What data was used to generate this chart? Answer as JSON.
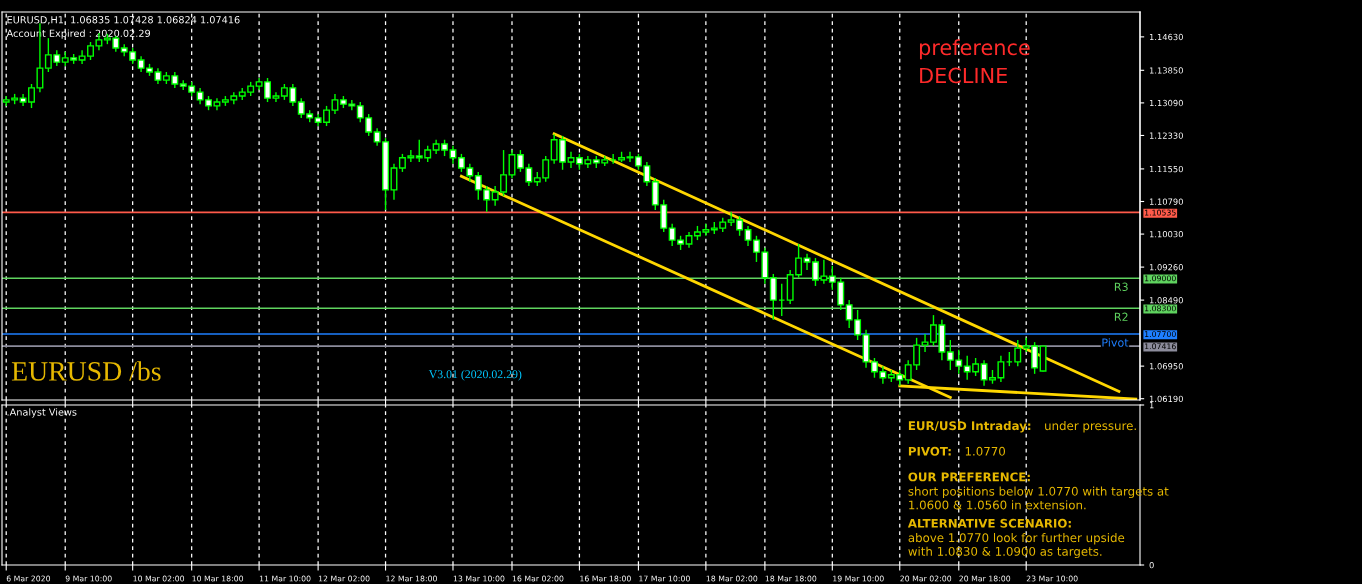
{
  "chart_data": [
    {
      "type": "candlestick",
      "title": "EURUSD,H1  1.06835 1.07428 1.06824 1.07416",
      "color": "#00ff00",
      "grid": "x",
      "annotations": [
        "Account Expired : 2020.02.29",
        "preference\nDECLINE",
        "EURUSD /bs",
        "V3.01 (2020.02.29)"
      ],
      "categories": [
        null,
        null,
        null,
        null,
        null,
        null,
        null,
        null,
        null,
        null,
        null,
        null,
        null,
        null,
        null,
        null,
        null,
        null,
        null,
        null,
        null,
        null,
        null,
        null,
        null,
        null,
        null,
        null,
        null,
        null,
        null,
        null,
        null,
        null,
        null,
        null,
        null,
        null,
        null,
        null,
        null,
        null,
        null,
        null,
        null,
        null,
        null,
        null,
        null,
        null,
        null,
        null,
        null,
        null,
        null,
        null,
        null,
        null,
        null,
        null,
        null,
        null,
        null,
        null,
        null,
        null,
        null,
        null,
        null,
        null,
        null,
        null,
        null,
        null,
        null,
        null,
        null,
        null,
        null,
        null,
        null,
        null,
        null,
        null,
        null,
        null,
        null,
        null,
        null,
        null,
        null,
        null,
        null,
        null,
        null,
        null,
        null,
        null,
        null,
        null,
        null,
        null,
        null,
        null,
        null,
        null,
        null,
        null,
        null,
        null,
        null,
        null,
        null,
        null,
        null,
        null,
        null,
        null,
        null,
        null,
        null,
        null,
        null,
        null,
        null,
        null,
        null,
        null,
        null,
        null,
        null,
        null,
        null,
        null,
        null
      ],
      "y2lim": [
        1.0616,
        1.1521
      ],
      "y2ticks": [
        {
          "value": 1.10535,
          "label": "1.10535"
        },
        {
          "value": 1.09,
          "label": "1.09000"
        },
        {
          "value": 1.083,
          "label": "1.08300"
        },
        {
          "value": 1.077,
          "label": "1.07700"
        },
        {
          "value": 1.07416,
          "label": "1.07416"
        }
      ],
      "ohlc": [
        [
          1.1311,
          1.1325,
          1.1302,
          1.1316
        ],
        [
          1.1316,
          1.133,
          1.1306,
          1.132
        ],
        [
          1.132,
          1.133,
          1.1302,
          1.1311
        ],
        [
          1.1311,
          1.1353,
          1.1297,
          1.1344
        ],
        [
          1.1344,
          1.1495,
          1.1334,
          1.139
        ],
        [
          1.139,
          1.146,
          1.1381,
          1.1421
        ],
        [
          1.1421,
          1.1432,
          1.1395,
          1.1404
        ],
        [
          1.1404,
          1.1428,
          1.1395,
          1.1414
        ],
        [
          1.1414,
          1.1423,
          1.14,
          1.1409
        ],
        [
          1.1409,
          1.1432,
          1.14,
          1.1418
        ],
        [
          1.1418,
          1.1451,
          1.1409,
          1.1442
        ],
        [
          1.1442,
          1.1472,
          1.1432,
          1.1456
        ],
        [
          1.1456,
          1.147,
          1.1446,
          1.146
        ],
        [
          1.146,
          1.1465,
          1.1428,
          1.1437
        ],
        [
          1.1437,
          1.1446,
          1.1418,
          1.1428
        ],
        [
          1.1428,
          1.1437,
          1.14,
          1.1409
        ],
        [
          1.1409,
          1.1418,
          1.1381,
          1.139
        ],
        [
          1.139,
          1.14,
          1.1372,
          1.1381
        ],
        [
          1.1381,
          1.139,
          1.1353,
          1.1362
        ],
        [
          1.1362,
          1.1381,
          1.1353,
          1.1372
        ],
        [
          1.1372,
          1.1381,
          1.1344,
          1.1353
        ],
        [
          1.1353,
          1.1362,
          1.1339,
          1.1348
        ],
        [
          1.1348,
          1.1358,
          1.1325,
          1.1334
        ],
        [
          1.1334,
          1.1344,
          1.1306,
          1.1316
        ],
        [
          1.1316,
          1.1325,
          1.1292,
          1.1302
        ],
        [
          1.1302,
          1.132,
          1.1292,
          1.1311
        ],
        [
          1.1311,
          1.1325,
          1.1302,
          1.1316
        ],
        [
          1.1316,
          1.1334,
          1.1306,
          1.1325
        ],
        [
          1.1325,
          1.1344,
          1.1316,
          1.1334
        ],
        [
          1.1334,
          1.1358,
          1.1325,
          1.1348
        ],
        [
          1.1348,
          1.1367,
          1.1339,
          1.1358
        ],
        [
          1.1358,
          1.1367,
          1.1311,
          1.132
        ],
        [
          1.132,
          1.1334,
          1.1311,
          1.1325
        ],
        [
          1.1325,
          1.1353,
          1.1316,
          1.1344
        ],
        [
          1.1344,
          1.1353,
          1.1302,
          1.1311
        ],
        [
          1.1311,
          1.132,
          1.1274,
          1.1283
        ],
        [
          1.1283,
          1.1292,
          1.1264,
          1.1274
        ],
        [
          1.1274,
          1.1283,
          1.1255,
          1.1264
        ],
        [
          1.1264,
          1.1302,
          1.1255,
          1.1292
        ],
        [
          1.1292,
          1.133,
          1.1283,
          1.1316
        ],
        [
          1.1316,
          1.1325,
          1.1297,
          1.1306
        ],
        [
          1.1306,
          1.1316,
          1.1292,
          1.1302
        ],
        [
          1.1302,
          1.1311,
          1.1264,
          1.1274
        ],
        [
          1.1274,
          1.1283,
          1.1232,
          1.1241
        ],
        [
          1.1241,
          1.125,
          1.1209,
          1.1218
        ],
        [
          1.1218,
          1.1227,
          1.1059,
          1.1106
        ],
        [
          1.1106,
          1.1167,
          1.1083,
          1.1157
        ],
        [
          1.1157,
          1.119,
          1.1148,
          1.1181
        ],
        [
          1.1181,
          1.1199,
          1.1171,
          1.1185
        ],
        [
          1.1185,
          1.1223,
          1.1171,
          1.1181
        ],
        [
          1.1181,
          1.1209,
          1.1171,
          1.1199
        ],
        [
          1.1199,
          1.1223,
          1.119,
          1.1213
        ],
        [
          1.1213,
          1.1223,
          1.1185,
          1.1199
        ],
        [
          1.1199,
          1.1209,
          1.1167,
          1.1181
        ],
        [
          1.1181,
          1.119,
          1.1148,
          1.1157
        ],
        [
          1.1157,
          1.1167,
          1.1125,
          1.1139
        ],
        [
          1.1139,
          1.1148,
          1.1083,
          1.1106
        ],
        [
          1.1106,
          1.1115,
          1.1055,
          1.1083
        ],
        [
          1.1083,
          1.1115,
          1.1069,
          1.1101
        ],
        [
          1.1101,
          1.1199,
          1.1092,
          1.1141
        ],
        [
          1.1141,
          1.1199,
          1.1134,
          1.1188
        ],
        [
          1.1188,
          1.1199,
          1.1148,
          1.1157
        ],
        [
          1.1157,
          1.1167,
          1.1115,
          1.1125
        ],
        [
          1.1125,
          1.1148,
          1.1115,
          1.1134
        ],
        [
          1.1134,
          1.1185,
          1.1125,
          1.1176
        ],
        [
          1.1176,
          1.1236,
          1.1167,
          1.1223
        ],
        [
          1.1223,
          1.1232,
          1.1153,
          1.1171
        ],
        [
          1.1171,
          1.1195,
          1.1157,
          1.1181
        ],
        [
          1.1181,
          1.119,
          1.1153,
          1.1167
        ],
        [
          1.1167,
          1.1185,
          1.1157,
          1.1176
        ],
        [
          1.1176,
          1.1185,
          1.1157,
          1.1169
        ],
        [
          1.1169,
          1.1185,
          1.1162,
          1.1176
        ],
        [
          1.1176,
          1.119,
          1.1167,
          1.1176
        ],
        [
          1.1176,
          1.1195,
          1.1171,
          1.1181
        ],
        [
          1.1181,
          1.1195,
          1.1171,
          1.1183
        ],
        [
          1.1183,
          1.119,
          1.1153,
          1.1162
        ],
        [
          1.1162,
          1.1171,
          1.1115,
          1.1125
        ],
        [
          1.1125,
          1.1134,
          1.1059,
          1.1071
        ],
        [
          1.1071,
          1.1083,
          1.1008,
          1.1017
        ],
        [
          1.1017,
          1.1027,
          1.0975,
          1.0989
        ],
        [
          1.0989,
          1.0999,
          1.0966,
          1.098
        ],
        [
          1.098,
          1.1008,
          1.0971,
          1.0999
        ],
        [
          1.0999,
          1.1022,
          1.0989,
          1.1008
        ],
        [
          1.1008,
          1.1027,
          1.0999,
          1.1013
        ],
        [
          1.1013,
          1.1031,
          1.1003,
          1.1017
        ],
        [
          1.1017,
          1.1041,
          1.1008,
          1.1031
        ],
        [
          1.1031,
          1.1055,
          1.1022,
          1.1036
        ],
        [
          1.1036,
          1.1045,
          1.0999,
          1.1013
        ],
        [
          1.1013,
          1.1022,
          1.0975,
          1.0989
        ],
        [
          1.0989,
          1.0999,
          1.0938,
          1.0961
        ],
        [
          1.0961,
          1.0971,
          1.0887,
          1.0901
        ],
        [
          1.0901,
          1.091,
          1.0803,
          1.0849
        ],
        [
          1.0849,
          1.0887,
          1.0812,
          1.0849
        ],
        [
          1.0849,
          1.0919,
          1.084,
          1.0908
        ],
        [
          1.0908,
          1.098,
          1.0901,
          1.0947
        ],
        [
          1.0947,
          1.0957,
          1.0919,
          1.0938
        ],
        [
          1.0938,
          1.0947,
          1.0882,
          1.0896
        ],
        [
          1.0896,
          1.0943,
          1.0887,
          1.0905
        ],
        [
          1.0905,
          1.0929,
          1.0873,
          1.0891
        ],
        [
          1.0891,
          1.0901,
          1.0826,
          1.0838
        ],
        [
          1.0838,
          1.0849,
          1.0784,
          1.0803
        ],
        [
          1.0803,
          1.0826,
          1.0756,
          1.0768
        ],
        [
          1.0768,
          1.078,
          1.0691,
          1.0705
        ],
        [
          1.0705,
          1.0714,
          1.0668,
          1.0682
        ],
        [
          1.0682,
          1.0695,
          1.0654,
          1.0668
        ],
        [
          1.0668,
          1.0686,
          1.0658,
          1.0675
        ],
        [
          1.0675,
          1.0686,
          1.0649,
          1.0663
        ],
        [
          1.0663,
          1.0709,
          1.0654,
          1.0698
        ],
        [
          1.0698,
          1.0761,
          1.0686,
          1.0744
        ],
        [
          1.0744,
          1.077,
          1.0728,
          1.0751
        ],
        [
          1.0751,
          1.0814,
          1.0742,
          1.0791
        ],
        [
          1.0791,
          1.0803,
          1.0709,
          1.0728
        ],
        [
          1.0728,
          1.0756,
          1.0686,
          1.0709
        ],
        [
          1.0709,
          1.0733,
          1.0677,
          1.0695
        ],
        [
          1.0695,
          1.0719,
          1.0663,
          1.0682
        ],
        [
          1.0682,
          1.0714,
          1.0672,
          1.07
        ],
        [
          1.07,
          1.0709,
          1.0649,
          1.0663
        ],
        [
          1.0663,
          1.0686,
          1.0654,
          1.0668
        ],
        [
          1.0668,
          1.0719,
          1.0658,
          1.0705
        ],
        [
          1.0705,
          1.0728,
          1.0695,
          1.0705
        ],
        [
          1.0705,
          1.0756,
          1.0695,
          1.0737
        ],
        [
          1.0737,
          1.0761,
          1.0728,
          1.0742
        ],
        [
          1.0742,
          1.0751,
          1.0677,
          1.0691
        ],
        [
          1.06835,
          1.07428,
          1.06824,
          1.07416
        ],
        null,
        null,
        null,
        null,
        null,
        null,
        null,
        null,
        null,
        null,
        null
      ],
      "series": [
        {
          "type": "line",
          "color": "#ffd700",
          "values": [
            null,
            null,
            null,
            null,
            null,
            null,
            null,
            null,
            null,
            null,
            null,
            null,
            null,
            null,
            null,
            null,
            null,
            null,
            null,
            null,
            null,
            null,
            null,
            null,
            null,
            null,
            null,
            null,
            null,
            null,
            null,
            null,
            null,
            null,
            null,
            null,
            null,
            null,
            null,
            null,
            null,
            null,
            null,
            null,
            null,
            null,
            null,
            null,
            null,
            null,
            null,
            null,
            null,
            null,
            null,
            null,
            null,
            null,
            null,
            null,
            null,
            null,
            null,
            null,
            null,
            1.1237,
            null,
            null,
            null,
            null,
            null,
            null,
            null,
            null,
            null,
            null,
            null,
            null,
            null,
            null,
            null,
            null,
            null,
            null,
            null,
            null,
            null,
            null,
            null,
            null,
            null,
            null,
            null,
            null,
            null,
            null,
            null,
            null,
            null,
            null,
            null,
            null,
            null,
            null,
            null,
            null,
            null,
            null,
            null,
            null,
            null,
            null,
            null,
            null,
            null,
            null,
            null,
            null,
            null,
            null,
            null,
            null,
            null,
            null,
            null,
            null,
            null,
            null,
            null,
            null,
            null,
            null,
            1.0636,
            null,
            null
          ]
        },
        {
          "type": "line",
          "color": "#ffd700",
          "values": [
            null,
            null,
            null,
            null,
            null,
            null,
            null,
            null,
            null,
            null,
            null,
            null,
            null,
            null,
            null,
            null,
            null,
            null,
            null,
            null,
            null,
            null,
            null,
            null,
            null,
            null,
            null,
            null,
            null,
            null,
            null,
            null,
            null,
            null,
            null,
            null,
            null,
            null,
            null,
            null,
            null,
            null,
            null,
            null,
            null,
            null,
            null,
            null,
            null,
            null,
            null,
            null,
            null,
            null,
            1.1138,
            null,
            null,
            null,
            null,
            null,
            null,
            null,
            null,
            null,
            null,
            null,
            null,
            null,
            null,
            null,
            null,
            null,
            null,
            null,
            null,
            null,
            null,
            null,
            null,
            null,
            null,
            null,
            null,
            null,
            null,
            null,
            null,
            null,
            null,
            null,
            null,
            null,
            null,
            null,
            null,
            null,
            null,
            null,
            null,
            null,
            null,
            null,
            null,
            null,
            null,
            null,
            null,
            null,
            null,
            null,
            null,
            null,
            1.0622,
            null,
            null,
            null,
            null,
            null,
            null,
            null,
            null,
            null,
            null,
            null,
            null,
            null,
            null,
            null,
            null,
            null,
            null,
            null,
            null,
            null,
            null
          ]
        },
        {
          "type": "line",
          "color": "#ffd700",
          "values": [
            null,
            null,
            null,
            null,
            null,
            null,
            null,
            null,
            null,
            null,
            null,
            null,
            null,
            null,
            null,
            null,
            null,
            null,
            null,
            null,
            null,
            null,
            null,
            null,
            null,
            null,
            null,
            null,
            null,
            null,
            null,
            null,
            null,
            null,
            null,
            null,
            null,
            null,
            null,
            null,
            null,
            null,
            null,
            null,
            null,
            null,
            null,
            null,
            null,
            null,
            null,
            null,
            null,
            null,
            null,
            null,
            null,
            null,
            null,
            null,
            null,
            null,
            null,
            null,
            null,
            null,
            null,
            null,
            null,
            null,
            null,
            null,
            null,
            null,
            null,
            null,
            null,
            null,
            null,
            null,
            null,
            null,
            null,
            null,
            null,
            null,
            null,
            null,
            null,
            null,
            null,
            null,
            null,
            null,
            null,
            null,
            null,
            null,
            null,
            null,
            null,
            null,
            null,
            null,
            null,
            null,
            1.0649,
            null,
            null,
            null,
            null,
            null,
            null,
            null,
            null,
            null,
            null,
            null,
            null,
            null,
            null,
            null,
            null,
            null,
            null,
            null,
            null,
            null,
            null,
            null,
            null,
            null,
            null,
            null,
            1.0618
          ]
        }
      ],
      "ylim": [
        1.0616,
        1.1521
      ],
      "yticks": [
        {
          "value": 1.1463,
          "label": "1.14630"
        },
        {
          "value": 1.1385,
          "label": "1.13850"
        },
        {
          "value": 1.1309,
          "label": "1.13090"
        },
        {
          "value": 1.1233,
          "label": "1.12330"
        },
        {
          "value": 1.1155,
          "label": "1.11550"
        },
        {
          "value": 1.1079,
          "label": "1.10790"
        },
        {
          "value": 1.1003,
          "label": "1.10030"
        },
        {
          "value": 1.0926,
          "label": "1.09260"
        },
        {
          "value": 1.0849,
          "label": "1.08490"
        },
        {
          "value": 1.0695,
          "label": "1.06950"
        },
        {
          "value": 1.0619,
          "label": "1.06190"
        }
      ],
      "ref_lines": [
        {
          "axis": "y",
          "value": 1.10535,
          "label": null,
          "color": "#ff5a4a"
        },
        {
          "axis": "y",
          "value": 1.09,
          "label": "R3",
          "color": "#5fd35f"
        },
        {
          "axis": "y",
          "value": 1.083,
          "label": "R2",
          "color": "#5fd35f"
        },
        {
          "axis": "y",
          "value": 1.077,
          "label": "Pivot",
          "color": "#1e7fff"
        },
        {
          "axis": "y",
          "value": 1.07416,
          "label": null,
          "color": "#8c8c9c"
        }
      ]
    },
    {
      "type": "line",
      "title": ".Analyst Views",
      "grid": "x",
      "values": [
        null,
        null,
        null,
        null,
        null,
        null,
        null,
        null,
        null,
        null,
        null,
        null,
        null,
        null,
        null,
        null,
        null,
        null,
        null,
        null,
        null,
        null,
        null,
        null,
        null,
        null,
        null,
        null,
        null,
        null,
        null,
        null,
        null,
        null,
        null,
        null,
        null,
        null,
        null,
        null,
        null,
        null,
        null,
        null,
        null,
        null,
        null,
        null,
        null,
        null,
        null,
        null,
        null,
        null,
        null,
        null,
        null,
        null,
        null,
        null,
        null,
        null,
        null,
        null,
        null,
        null,
        null,
        null,
        null,
        null,
        null,
        null,
        null,
        null,
        null,
        null,
        null,
        null,
        null,
        null,
        null,
        null,
        null,
        null,
        null,
        null,
        null,
        null,
        null,
        null,
        null,
        null,
        null,
        null,
        null,
        null,
        null,
        null,
        null,
        null,
        null,
        null,
        null,
        null,
        null,
        null,
        null,
        null,
        null,
        null,
        null,
        null,
        null,
        null,
        null,
        null,
        null,
        null,
        null,
        null,
        null,
        null,
        null,
        null,
        null,
        null,
        null,
        null,
        null,
        null,
        null,
        null,
        null,
        null,
        null
      ],
      "categories": [
        "6 Mar 2020",
        null,
        null,
        null,
        null,
        null,
        null,
        "9 Mar 10:00",
        null,
        null,
        null,
        null,
        null,
        null,
        null,
        "10 Mar 02:00",
        null,
        null,
        null,
        null,
        null,
        null,
        "10 Mar 18:00",
        null,
        null,
        null,
        null,
        null,
        null,
        null,
        "11 Mar 10:00",
        null,
        null,
        null,
        null,
        null,
        null,
        "12 Mar 02:00",
        null,
        null,
        null,
        null,
        null,
        null,
        null,
        "12 Mar 18:00",
        null,
        null,
        null,
        null,
        null,
        null,
        null,
        "13 Mar 10:00",
        null,
        null,
        null,
        null,
        null,
        null,
        "16 Mar 02:00",
        null,
        null,
        null,
        null,
        null,
        null,
        null,
        "16 Mar 18:00",
        null,
        null,
        null,
        null,
        null,
        null,
        "17 Mar 10:00",
        null,
        null,
        null,
        null,
        null,
        null,
        null,
        "18 Mar 02:00",
        null,
        null,
        null,
        null,
        null,
        null,
        "18 Mar 18:00",
        null,
        null,
        null,
        null,
        null,
        null,
        null,
        "19 Mar 10:00",
        null,
        null,
        null,
        null,
        null,
        null,
        null,
        "20 Mar 02:00",
        null,
        null,
        null,
        null,
        null,
        null,
        "20 Mar 18:00",
        null,
        null,
        null,
        null,
        null,
        null,
        null,
        "23 Mar 10:00",
        null,
        null,
        null,
        null,
        null,
        null,
        null,
        null,
        null,
        null,
        null,
        null,
        null
      ],
      "ylim": [
        0,
        1
      ],
      "yticks": [
        0,
        1
      ],
      "annotations": [
        "EUR/USD Intraday:",
        "under pressure.",
        "PIVOT:",
        "1.0770",
        "OUR PREFERENCE:",
        "short positions below 1.0770 with targets at\n1.0600 & 1.0560 in extension.",
        "ALTERNATIVE SCENARIO:",
        "above 1.0770 look for further upside\nwith 1.0830 & 1.0900 as targets."
      ]
    }
  ]
}
